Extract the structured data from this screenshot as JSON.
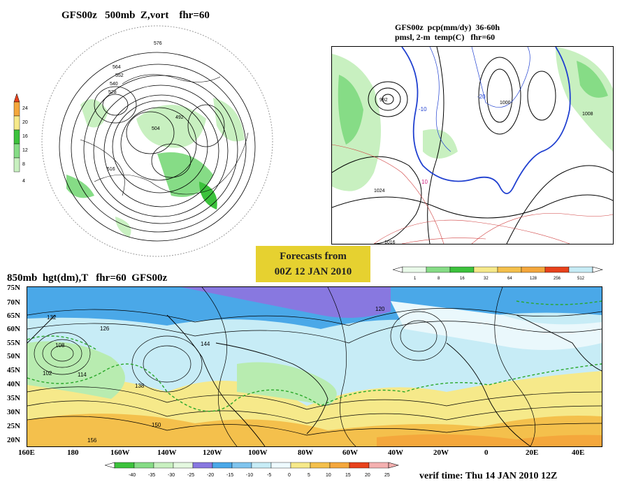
{
  "panel_500mb": {
    "title": "GFS00z   500mb  Z,vort    fhr=60",
    "scale_labels": [
      "24",
      "20",
      "16",
      "12",
      "8",
      "4"
    ],
    "contour_labels": [
      "576",
      "564",
      "552",
      "540",
      "528",
      "516",
      "504",
      "492"
    ]
  },
  "panel_precip": {
    "title_line1": "GFS00z  pcp(mm/dy)  36-60h",
    "title_line2": "pmsl, 2-m  temp(C)   fhr=60",
    "pressure_labels": [
      "1008",
      "1016",
      "1024",
      "992",
      "1000"
    ],
    "temp_labels": [
      "-10",
      "-20",
      "10"
    ],
    "scale_labels": [
      "1",
      "8",
      "16",
      "32",
      "64",
      "128",
      "256",
      "512"
    ]
  },
  "forecast_box": {
    "line1": "Forecasts from",
    "line2": "00Z  12  JAN  2010"
  },
  "panel_850mb": {
    "title": "850mb  hgt(dm),T   fhr=60  GFS00z",
    "lat_labels": [
      "75N",
      "70N",
      "65N",
      "60N",
      "55N",
      "50N",
      "45N",
      "40N",
      "35N",
      "30N",
      "25N",
      "20N"
    ],
    "lon_labels": [
      "160E",
      "180",
      "160W",
      "140W",
      "120W",
      "100W",
      "80W",
      "60W",
      "40W",
      "20W",
      "0",
      "20E",
      "40E"
    ],
    "height_labels": [
      "132",
      "126",
      "108",
      "102",
      "114",
      "120",
      "138",
      "144",
      "150",
      "156"
    ],
    "scale_labels": [
      "-40",
      "-35",
      "-30",
      "-25",
      "-20",
      "-15",
      "-10",
      "-5",
      "0",
      "5",
      "10",
      "15",
      "20",
      "25"
    ]
  },
  "verif_time": "verif time: Thu 14 JAN 2010 12Z",
  "colors": {
    "green_light": "#c8f0c0",
    "green": "#3cc23c",
    "yellow": "#f6e98a",
    "orange": "#f4a73c",
    "red": "#e8421c",
    "light_blue": "#c7ecf6",
    "blue": "#4aa8e8",
    "purple": "#8878e0",
    "box_yellow": "#e6d130"
  }
}
